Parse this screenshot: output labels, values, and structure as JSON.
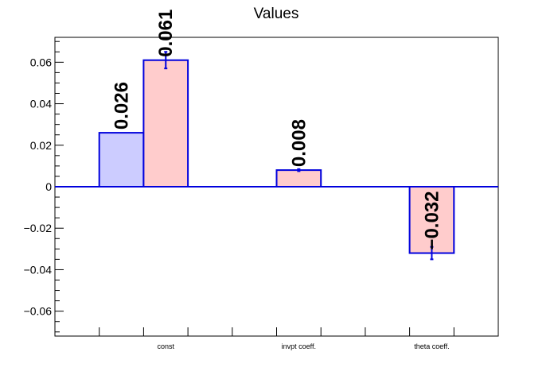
{
  "chart_data": {
    "type": "bar",
    "title": "Values",
    "categories": [
      "const",
      "invpt coeff.",
      "theta coeff."
    ],
    "ylim": [
      -0.072,
      0.072
    ],
    "yticks": [
      -0.06,
      -0.04,
      -0.02,
      0,
      0.02,
      0.04,
      0.06
    ],
    "ytick_labels": [
      "−0.06",
      "−0.04",
      "−0.02",
      "0",
      "0.02",
      "0.04",
      "0.06"
    ],
    "series": [
      {
        "fill": "#ccccff",
        "stroke": "#0000dd",
        "values": [
          0.026,
          null,
          null
        ],
        "labels": [
          "0.026",
          "",
          ""
        ],
        "errors": [
          0,
          0,
          0
        ]
      },
      {
        "fill": "#ffcccc",
        "stroke": "#0000dd",
        "values": [
          0.061,
          0.008,
          -0.032
        ],
        "labels": [
          "0.061",
          "0.008",
          "−0.032"
        ],
        "errors": [
          0.004,
          0.0005,
          0.003
        ]
      }
    ],
    "grid": false,
    "zero_line_color": "#0000dd"
  }
}
